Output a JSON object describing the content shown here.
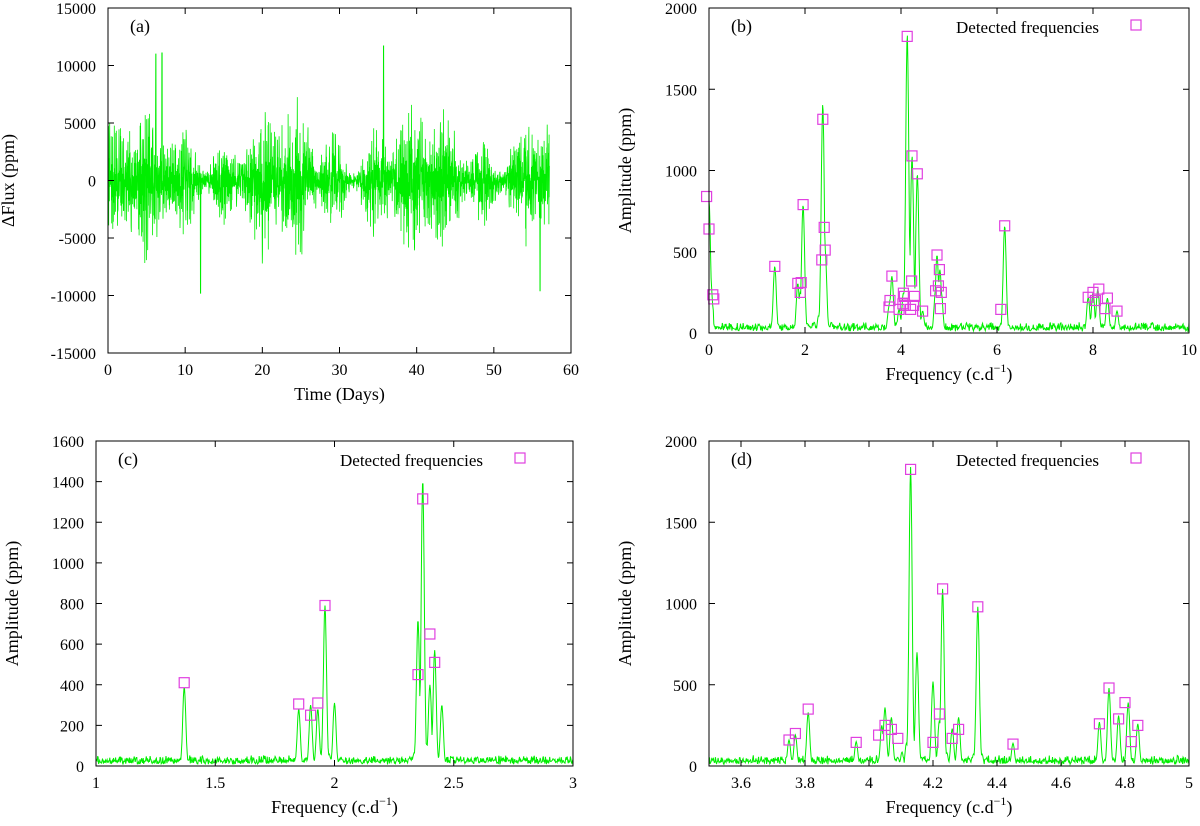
{
  "figure": {
    "colors": {
      "line": "#00ee00",
      "marker": "#e040e0",
      "axis": "#000000",
      "background": "#ffffff"
    }
  },
  "chart_data": [
    {
      "panel": "(a)",
      "type": "line",
      "xlabel": "Time (Days)",
      "ylabel": "ΔFlux (ppm)",
      "xlim": [
        0,
        60
      ],
      "ylim": [
        -15000,
        15000
      ],
      "xticks": [
        0,
        10,
        20,
        30,
        40,
        50,
        60
      ],
      "yticks": [
        -15000,
        -10000,
        -5000,
        0,
        5000,
        10000,
        15000
      ],
      "series": [
        {
          "name": "light curve",
          "x_range": [
            0,
            57.2
          ],
          "envelope": 8000,
          "peaks": [
            [
              6.2,
              11000
            ],
            [
              7.0,
              11100
            ],
            [
              12.0,
              -9800
            ],
            [
              35.7,
              11700
            ],
            [
              56.0,
              -9600
            ]
          ]
        }
      ]
    },
    {
      "panel": "(b)",
      "type": "line",
      "xlabel": "Frequency (c.d",
      "xlabel_sup": "−1",
      "xlabel_end": ")",
      "ylabel": "Amplitude (ppm)",
      "legend": "Detected frequencies",
      "legend_position": "top-right",
      "xlim": [
        0,
        10
      ],
      "ylim": [
        0,
        2000
      ],
      "xticks": [
        0,
        2,
        4,
        6,
        8,
        10
      ],
      "yticks": [
        0,
        500,
        1000,
        1500,
        2000
      ],
      "series": [
        {
          "name": "periodogram",
          "peaks": [
            [
              0.0,
              820
            ],
            [
              1.37,
              410
            ],
            [
              1.85,
              305
            ],
            [
              1.9,
              250
            ],
            [
              1.96,
              790
            ],
            [
              2.35,
              450
            ],
            [
              2.37,
              1410
            ],
            [
              2.4,
              650
            ],
            [
              2.42,
              510
            ],
            [
              3.75,
              160
            ],
            [
              3.77,
              200
            ],
            [
              3.81,
              350
            ],
            [
              3.96,
              145
            ],
            [
              4.04,
              180
            ],
            [
              4.05,
              245
            ],
            [
              4.07,
              225
            ],
            [
              4.13,
              1840
            ],
            [
              4.2,
              145
            ],
            [
              4.22,
              320
            ],
            [
              4.23,
              1090
            ],
            [
              4.26,
              170
            ],
            [
              4.28,
              225
            ],
            [
              4.34,
              980
            ],
            [
              4.45,
              135
            ],
            [
              4.72,
              260
            ],
            [
              4.75,
              480
            ],
            [
              4.78,
              290
            ],
            [
              4.81,
              390
            ],
            [
              4.82,
              150
            ],
            [
              4.84,
              250
            ],
            [
              6.16,
              660
            ],
            [
              7.9,
              220
            ],
            [
              8.0,
              250
            ],
            [
              8.1,
              270
            ],
            [
              8.3,
              215
            ],
            [
              8.5,
              135
            ]
          ]
        },
        {
          "name": "Detected frequencies",
          "points": [
            [
              -0.05,
              840
            ],
            [
              0.0,
              640
            ],
            [
              0.08,
              235
            ],
            [
              0.1,
              210
            ],
            [
              1.37,
              410
            ],
            [
              1.85,
              305
            ],
            [
              1.9,
              250
            ],
            [
              1.92,
              310
            ],
            [
              1.96,
              790
            ],
            [
              2.35,
              450
            ],
            [
              2.37,
              1315
            ],
            [
              2.4,
              650
            ],
            [
              2.42,
              510
            ],
            [
              3.75,
              160
            ],
            [
              3.77,
              200
            ],
            [
              3.81,
              350
            ],
            [
              3.96,
              145
            ],
            [
              4.04,
              180
            ],
            [
              4.05,
              245
            ],
            [
              4.07,
              225
            ],
            [
              4.09,
              170
            ],
            [
              4.13,
              1825
            ],
            [
              4.2,
              145
            ],
            [
              4.22,
              320
            ],
            [
              4.23,
              1090
            ],
            [
              4.26,
              170
            ],
            [
              4.28,
              225
            ],
            [
              4.34,
              980
            ],
            [
              4.45,
              135
            ],
            [
              4.72,
              260
            ],
            [
              4.75,
              480
            ],
            [
              4.78,
              290
            ],
            [
              4.8,
              390
            ],
            [
              4.82,
              150
            ],
            [
              4.84,
              250
            ],
            [
              6.08,
              145
            ],
            [
              6.16,
              660
            ],
            [
              7.9,
              220
            ],
            [
              8.0,
              250
            ],
            [
              8.05,
              200
            ],
            [
              8.12,
              270
            ],
            [
              8.3,
              215
            ],
            [
              8.25,
              150
            ],
            [
              8.5,
              135
            ]
          ]
        }
      ]
    },
    {
      "panel": "(c)",
      "type": "line",
      "xlabel": "Frequency (c.d",
      "xlabel_sup": "−1",
      "xlabel_end": ")",
      "ylabel": "Amplitude (ppm)",
      "legend": "Detected frequencies",
      "legend_position": "top-right",
      "xlim": [
        1,
        3
      ],
      "ylim": [
        0,
        1600
      ],
      "xticks": [
        1,
        1.5,
        2,
        2.5,
        3
      ],
      "yticks": [
        0,
        200,
        400,
        600,
        800,
        1000,
        1200,
        1400,
        1600
      ],
      "series": [
        {
          "name": "periodogram",
          "peaks": [
            [
              1.37,
              390
            ],
            [
              1.85,
              280
            ],
            [
              1.9,
              300
            ],
            [
              1.93,
              280
            ],
            [
              1.96,
              790
            ],
            [
              2.0,
              310
            ],
            [
              2.35,
              720
            ],
            [
              2.37,
              1410
            ],
            [
              2.4,
              400
            ],
            [
              2.42,
              570
            ],
            [
              2.45,
              300
            ]
          ]
        },
        {
          "name": "Detected frequencies",
          "points": [
            [
              1.37,
              410
            ],
            [
              1.85,
              305
            ],
            [
              1.9,
              250
            ],
            [
              1.93,
              310
            ],
            [
              1.96,
              790
            ],
            [
              2.35,
              450
            ],
            [
              2.37,
              1315
            ],
            [
              2.4,
              650
            ],
            [
              2.42,
              510
            ]
          ]
        }
      ]
    },
    {
      "panel": "(d)",
      "type": "line",
      "xlabel": "Frequency (c.d",
      "xlabel_sup": "−1",
      "xlabel_end": ")",
      "ylabel": "Amplitude (ppm)",
      "legend": "Detected frequencies",
      "legend_position": "top-right",
      "xlim": [
        3.5,
        5
      ],
      "ylim": [
        0,
        2000
      ],
      "xticks": [
        3.6,
        3.8,
        4,
        4.2,
        4.4,
        4.6,
        4.8,
        5
      ],
      "yticks": [
        0,
        500,
        1000,
        1500,
        2000
      ],
      "series": [
        {
          "name": "periodogram",
          "peaks": [
            [
              3.75,
              160
            ],
            [
              3.77,
              190
            ],
            [
              3.81,
              330
            ],
            [
              3.96,
              150
            ],
            [
              4.04,
              250
            ],
            [
              4.05,
              360
            ],
            [
              4.07,
              300
            ],
            [
              4.13,
              1840
            ],
            [
              4.15,
              700
            ],
            [
              4.2,
              520
            ],
            [
              4.22,
              280
            ],
            [
              4.23,
              1090
            ],
            [
              4.26,
              230
            ],
            [
              4.28,
              300
            ],
            [
              4.34,
              980
            ],
            [
              4.45,
              140
            ],
            [
              4.72,
              270
            ],
            [
              4.75,
              480
            ],
            [
              4.78,
              310
            ],
            [
              4.81,
              390
            ],
            [
              4.84,
              260
            ]
          ]
        },
        {
          "name": "Detected frequencies",
          "points": [
            [
              3.75,
              160
            ],
            [
              3.77,
              200
            ],
            [
              3.81,
              350
            ],
            [
              3.96,
              145
            ],
            [
              4.03,
              190
            ],
            [
              4.05,
              250
            ],
            [
              4.07,
              225
            ],
            [
              4.09,
              170
            ],
            [
              4.13,
              1825
            ],
            [
              4.2,
              145
            ],
            [
              4.22,
              320
            ],
            [
              4.23,
              1090
            ],
            [
              4.26,
              170
            ],
            [
              4.28,
              225
            ],
            [
              4.34,
              980
            ],
            [
              4.45,
              135
            ],
            [
              4.72,
              260
            ],
            [
              4.75,
              480
            ],
            [
              4.78,
              290
            ],
            [
              4.8,
              390
            ],
            [
              4.82,
              150
            ],
            [
              4.84,
              250
            ]
          ]
        }
      ]
    }
  ]
}
